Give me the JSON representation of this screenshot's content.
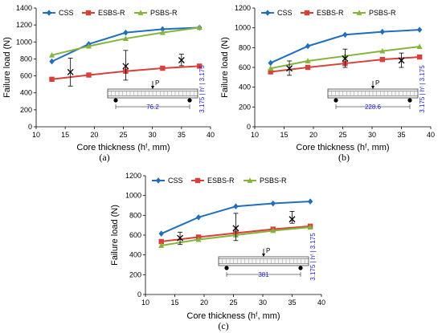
{
  "colors": {
    "CSS": "#1f6fbf",
    "ESBS-R": "#d9403a",
    "PSBS-R": "#86b43a",
    "dimension": "#2222cc"
  },
  "chart_data": [
    {
      "type": "line",
      "panel_label": "(a)",
      "xlabel": "Core thickness (hᶠ, mm)",
      "ylabel": "Failure load (N)",
      "xlim": [
        10,
        40
      ],
      "ylim": [
        0,
        1400
      ],
      "xticks": [
        10,
        15,
        20,
        25,
        30,
        35,
        40
      ],
      "yticks": [
        0,
        200,
        400,
        600,
        800,
        1000,
        1200,
        1400
      ],
      "grid": false,
      "legend_position": "top-left",
      "x": [
        12.7,
        19.05,
        25.4,
        31.75,
        38.1
      ],
      "series": [
        {
          "name": "CSS",
          "values": [
            770,
            975,
            1110,
            1150,
            1170
          ]
        },
        {
          "name": "ESBS-R",
          "values": [
            560,
            610,
            655,
            690,
            715
          ]
        },
        {
          "name": "PSBS-R",
          "values": [
            845,
            950,
            1040,
            1110,
            1170
          ]
        }
      ],
      "experimental": [
        {
          "x": 15.9,
          "y": 645,
          "low": 480,
          "high": 810
        },
        {
          "x": 25.4,
          "y": 715,
          "low": 550,
          "high": 900
        },
        {
          "x": 35,
          "y": 785,
          "low": 720,
          "high": 855
        }
      ],
      "inset": {
        "load_label": "P",
        "span_label": "76.2",
        "thickness_label": "3.175 | hᶠ | 3.175"
      }
    },
    {
      "type": "line",
      "panel_label": "(b)",
      "xlabel": "Core thickness (hᶠ, mm)",
      "ylabel": "Failure load (N)",
      "xlim": [
        10,
        40
      ],
      "ylim": [
        0,
        1200
      ],
      "xticks": [
        10,
        15,
        20,
        25,
        30,
        35,
        40
      ],
      "yticks": [
        0,
        200,
        400,
        600,
        800,
        1000,
        1200
      ],
      "grid": false,
      "legend_position": "top-left",
      "x": [
        12.7,
        19.05,
        25.4,
        31.75,
        38.1
      ],
      "series": [
        {
          "name": "CSS",
          "values": [
            645,
            815,
            930,
            960,
            980
          ]
        },
        {
          "name": "ESBS-R",
          "values": [
            555,
            600,
            640,
            680,
            705
          ]
        },
        {
          "name": "PSBS-R",
          "values": [
            590,
            665,
            715,
            765,
            810
          ]
        }
      ],
      "experimental": [
        {
          "x": 15.9,
          "y": 590,
          "low": 520,
          "high": 665
        },
        {
          "x": 25.4,
          "y": 690,
          "low": 600,
          "high": 785
        },
        {
          "x": 35,
          "y": 670,
          "low": 600,
          "high": 745
        }
      ],
      "inset": {
        "load_label": "P",
        "span_label": "228.6",
        "thickness_label": "3.175 | hᶠ | 3.175"
      }
    },
    {
      "type": "line",
      "panel_label": "(c)",
      "xlabel": "Core thickness (hᶠ, mm)",
      "ylabel": "Failure load (N)",
      "xlim": [
        10,
        40
      ],
      "ylim": [
        0,
        1200
      ],
      "xticks": [
        10,
        15,
        20,
        25,
        30,
        35,
        40
      ],
      "yticks": [
        0,
        200,
        400,
        600,
        800,
        1000,
        1200
      ],
      "grid": false,
      "legend_position": "top-left",
      "x": [
        12.7,
        19.05,
        25.4,
        31.75,
        38.1
      ],
      "series": [
        {
          "name": "CSS",
          "values": [
            615,
            780,
            890,
            920,
            940
          ]
        },
        {
          "name": "ESBS-R",
          "values": [
            535,
            580,
            620,
            660,
            690
          ]
        },
        {
          "name": "PSBS-R",
          "values": [
            495,
            555,
            600,
            645,
            680
          ]
        }
      ],
      "experimental": [
        {
          "x": 15.9,
          "y": 570,
          "low": 505,
          "high": 630
        },
        {
          "x": 25.4,
          "y": 670,
          "low": 545,
          "high": 820
        },
        {
          "x": 35,
          "y": 760,
          "low": 720,
          "high": 840
        }
      ],
      "inset": {
        "load_label": "P",
        "span_label": "381",
        "thickness_label": "3.175 | hᶠ | 3.175"
      }
    }
  ]
}
